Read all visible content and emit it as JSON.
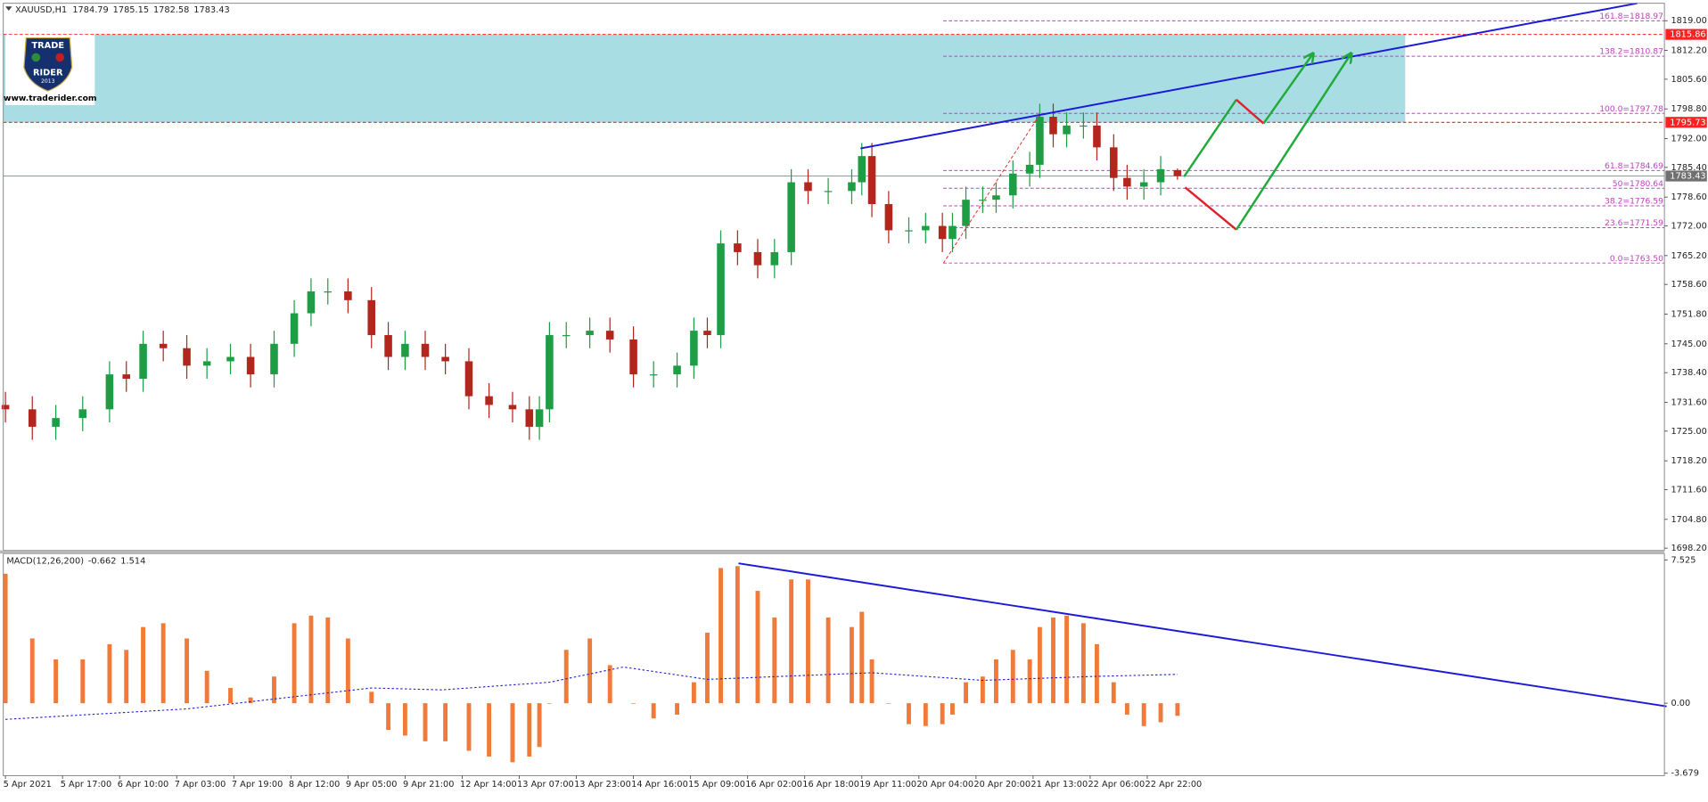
{
  "chart_data": [
    {
      "type": "candlestick",
      "symbol": "XAUUSD,H1",
      "x": [
        0,
        8,
        15,
        23,
        31,
        36,
        41,
        47,
        54,
        60,
        67,
        73,
        80,
        86,
        91,
        96,
        102,
        109,
        114,
        119,
        125,
        131,
        138,
        144,
        151,
        156,
        159,
        162,
        167,
        174,
        180,
        187,
        193,
        200,
        205,
        209,
        213,
        218,
        224,
        229,
        234,
        239,
        245,
        252,
        255,
        258,
        263,
        269,
        274,
        279,
        282,
        286,
        291,
        295,
        300,
        305,
        308,
        312,
        316,
        321,
        325,
        330,
        334,
        339,
        344,
        349
      ],
      "open": [
        1731,
        1730,
        1726,
        1728,
        1730,
        1738,
        1737,
        1745,
        1744,
        1740,
        1741,
        1742,
        1738,
        1745,
        1752,
        1757,
        1757,
        1755,
        1747,
        1742,
        1745,
        1742,
        1741,
        1733,
        1731,
        1730,
        1726,
        1730,
        1747,
        1747,
        1748,
        1746,
        1738,
        1738,
        1740,
        1748,
        1747,
        1768,
        1766,
        1763,
        1766,
        1782,
        1780,
        1780,
        1782,
        1788,
        1777,
        1771,
        1771,
        1772,
        1769,
        1772,
        1778,
        1778,
        1779,
        1784,
        1786,
        1797,
        1793,
        1795,
        1795,
        1790,
        1783,
        1781,
        1782,
        1784.79
      ],
      "high": [
        1734,
        1733,
        1731,
        1733,
        1741,
        1741,
        1748,
        1748,
        1747,
        1744,
        1745,
        1745,
        1748,
        1755,
        1760,
        1760,
        1760,
        1758,
        1750,
        1748,
        1748,
        1745,
        1744,
        1736,
        1734,
        1733,
        1733,
        1750,
        1750,
        1751,
        1751,
        1749,
        1741,
        1743,
        1751,
        1751,
        1771,
        1771,
        1769,
        1769,
        1785,
        1785,
        1783,
        1785,
        1791,
        1791,
        1780,
        1774,
        1775,
        1775,
        1775,
        1781,
        1781,
        1782,
        1787,
        1789,
        1800,
        1800,
        1798,
        1798,
        1798,
        1793,
        1786,
        1785,
        1788,
        1785.15
      ],
      "low": [
        1727,
        1723,
        1723,
        1725,
        1727,
        1734,
        1734,
        1741,
        1737,
        1737,
        1738,
        1735,
        1735,
        1742,
        1749,
        1754,
        1752,
        1744,
        1739,
        1739,
        1739,
        1738,
        1730,
        1728,
        1727,
        1723,
        1723,
        1727,
        1744,
        1744,
        1743,
        1735,
        1735,
        1735,
        1737,
        1744,
        1744,
        1763,
        1760,
        1760,
        1763,
        1777,
        1777,
        1777,
        1779,
        1774,
        1768,
        1768,
        1768,
        1766,
        1766,
        1769,
        1775,
        1775,
        1776,
        1781,
        1783,
        1790,
        1790,
        1792,
        1787,
        1780,
        1778,
        1778,
        1779,
        1782.58
      ],
      "close": [
        1730,
        1726,
        1728,
        1730,
        1738,
        1737,
        1745,
        1744,
        1740,
        1741,
        1742,
        1738,
        1745,
        1752,
        1757,
        1757,
        1755,
        1747,
        1742,
        1745,
        1742,
        1741,
        1733,
        1731,
        1730,
        1726,
        1730,
        1747,
        1747,
        1748,
        1746,
        1738,
        1738,
        1740,
        1748,
        1747,
        1768,
        1766,
        1763,
        1766,
        1782,
        1780,
        1780,
        1782,
        1788,
        1777,
        1771,
        1771,
        1772,
        1769,
        1772,
        1778,
        1778,
        1779,
        1784,
        1786,
        1797,
        1793,
        1795,
        1795,
        1790,
        1783,
        1781,
        1782,
        1785,
        1783.43
      ],
      "up_color": "#1f9d45",
      "down_color": "#b3261e",
      "xlim": [
        0,
        494
      ],
      "xticks": [
        {
          "value": 0,
          "label": "5 Apr 2021"
        },
        {
          "value": 17,
          "label": "5 Apr 17:00"
        },
        {
          "value": 34,
          "label": "6 Apr 10:00"
        },
        {
          "value": 51,
          "label": "7 Apr 03:00"
        },
        {
          "value": 68,
          "label": "7 Apr 19:00"
        },
        {
          "value": 85,
          "label": "8 Apr 12:00"
        },
        {
          "value": 102,
          "label": "9 Apr 05:00"
        },
        {
          "value": 119,
          "label": "9 Apr 21:00"
        },
        {
          "value": 136,
          "label": "12 Apr 14:00"
        },
        {
          "value": 153,
          "label": "13 Apr 07:00"
        },
        {
          "value": 170,
          "label": "13 Apr 23:00"
        },
        {
          "value": 187,
          "label": "14 Apr 16:00"
        },
        {
          "value": 204,
          "label": "15 Apr 09:00"
        },
        {
          "value": 221,
          "label": "16 Apr 02:00"
        },
        {
          "value": 238,
          "label": "16 Apr 18:00"
        },
        {
          "value": 255,
          "label": "19 Apr 11:00"
        },
        {
          "value": 272,
          "label": "20 Apr 04:00"
        },
        {
          "value": 289,
          "label": "20 Apr 20:00"
        },
        {
          "value": 306,
          "label": "21 Apr 13:00"
        },
        {
          "value": 323,
          "label": "22 Apr 06:00"
        },
        {
          "value": 340,
          "label": "22 Apr 22:00"
        }
      ],
      "ylim": [
        1697.7,
        1823.0
      ],
      "yticks": [
        {
          "value": 1819,
          "label": "1819.00"
        },
        {
          "value": 1812.2,
          "label": "1812.20"
        },
        {
          "value": 1805.6,
          "label": "1805.60"
        },
        {
          "value": 1798.8,
          "label": "1798.80"
        },
        {
          "value": 1792,
          "label": "1792.00"
        },
        {
          "value": 1785.4,
          "label": "1785.40"
        },
        {
          "value": 1778.6,
          "label": "1778.60"
        },
        {
          "value": 1772,
          "label": "1772.00"
        },
        {
          "value": 1765.2,
          "label": "1765.20"
        },
        {
          "value": 1758.6,
          "label": "1758.60"
        },
        {
          "value": 1751.8,
          "label": "1751.80"
        },
        {
          "value": 1745,
          "label": "1745.00"
        },
        {
          "value": 1738.4,
          "label": "1738.40"
        },
        {
          "value": 1731.6,
          "label": "1731.60"
        },
        {
          "value": 1725,
          "label": "1725.00"
        },
        {
          "value": 1718.2,
          "label": "1718.20"
        },
        {
          "value": 1711.6,
          "label": "1711.60"
        },
        {
          "value": 1704.8,
          "label": "1704.80"
        },
        {
          "value": 1698.2,
          "label": "1698.20"
        }
      ],
      "zone": {
        "low": 1795.73,
        "high": 1815.86,
        "color": "#a9dde4",
        "line_color": "#ff2020"
      },
      "fib_color": "#c040c0",
      "fib_levels": [
        {
          "value": 1818.97,
          "label": "161.8=1818.97"
        },
        {
          "value": 1810.87,
          "label": "138.2=1810.87"
        },
        {
          "value": 1797.78,
          "label": "100.0=1797.78"
        },
        {
          "value": 1784.69,
          "label": "61.8=1784.69"
        },
        {
          "value": 1780.64,
          "label": "50=1780.64"
        },
        {
          "value": 1776.59,
          "label": "38.2=1776.59"
        },
        {
          "value": 1771.59,
          "label": "23.6=1771.59"
        },
        {
          "value": 1763.5,
          "label": "0.0=1763.50"
        }
      ],
      "logo": {
        "top": "TRADE",
        "bottom": "RIDER",
        "year": "2013",
        "url": "www.traderider.com"
      }
    },
    {
      "type": "macd",
      "title": "MACD(12,26,200)",
      "color": "#f07a3a",
      "values": [
        6.8,
        3.4,
        2.3,
        2.3,
        3.1,
        2.8,
        4.0,
        4.2,
        3.4,
        1.7,
        0.8,
        0.3,
        1.4,
        4.2,
        4.6,
        4.5,
        3.4,
        0.6,
        -1.4,
        -1.7,
        -2.0,
        -2.0,
        -2.5,
        -2.8,
        -3.1,
        -2.8,
        -2.3,
        0,
        2.8,
        3.4,
        2.0,
        0,
        -0.8,
        -0.6,
        1.1,
        3.7,
        7.1,
        7.2,
        5.9,
        4.5,
        6.5,
        6.5,
        4.5,
        4.0,
        4.8,
        2.3,
        0,
        -1.1,
        -1.2,
        -1.1,
        -0.6,
        1.1,
        1.4,
        2.3,
        2.8,
        2.3,
        4.0,
        4.5,
        4.6,
        4.2,
        3.1,
        1.1,
        -0.6,
        -1.2,
        -1.0,
        -0.662
      ],
      "signal": {
        "color": "#2020d0",
        "x": [
          0,
          54,
          109,
          130,
          162,
          184,
          209,
          258,
          291,
          323,
          349
        ],
        "values": [
          -0.85,
          -0.3,
          0.8,
          0.7,
          1.1,
          1.9,
          1.25,
          1.6,
          1.2,
          1.4,
          1.514
        ]
      },
      "ylim": [
        -3.75,
        7.8
      ],
      "yticks": [
        7.525,
        {
          "value": 0,
          "label": "0.00"
        },
        -3.679
      ]
    }
  ]
}
